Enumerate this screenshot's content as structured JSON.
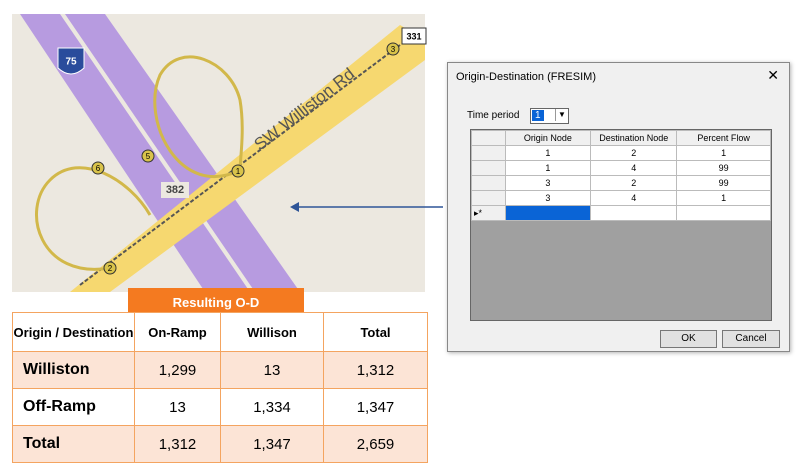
{
  "map": {
    "shields": [
      "331",
      "75",
      "382"
    ],
    "road_name": "SW Williston Rd",
    "nodes": [
      "1",
      "2",
      "3",
      "5",
      "6"
    ]
  },
  "dialog": {
    "title": "Origin-Destination (FRESIM)",
    "close": "✕",
    "time_period_label": "Time period",
    "time_period_value": "1",
    "grid": {
      "headers": [
        "Origin Node",
        "Destination Node",
        "Percent Flow"
      ],
      "rows": [
        [
          "1",
          "2",
          "1"
        ],
        [
          "1",
          "4",
          "99"
        ],
        [
          "3",
          "2",
          "99"
        ],
        [
          "3",
          "4",
          "1"
        ]
      ],
      "new_row_marker": "▸*"
    },
    "buttons": [
      "OK",
      "Cancel"
    ]
  },
  "result": {
    "title": "Resulting O-D",
    "headers": [
      "Origin / Destination",
      "On-Ramp",
      "Willison",
      "Total"
    ],
    "rows": [
      [
        "Williston",
        "1,299",
        "13",
        "1,312"
      ],
      [
        "Off-Ramp",
        "13",
        "1,334",
        "1,347"
      ],
      [
        "Total",
        "1,312",
        "1,347",
        "2,659"
      ]
    ]
  }
}
